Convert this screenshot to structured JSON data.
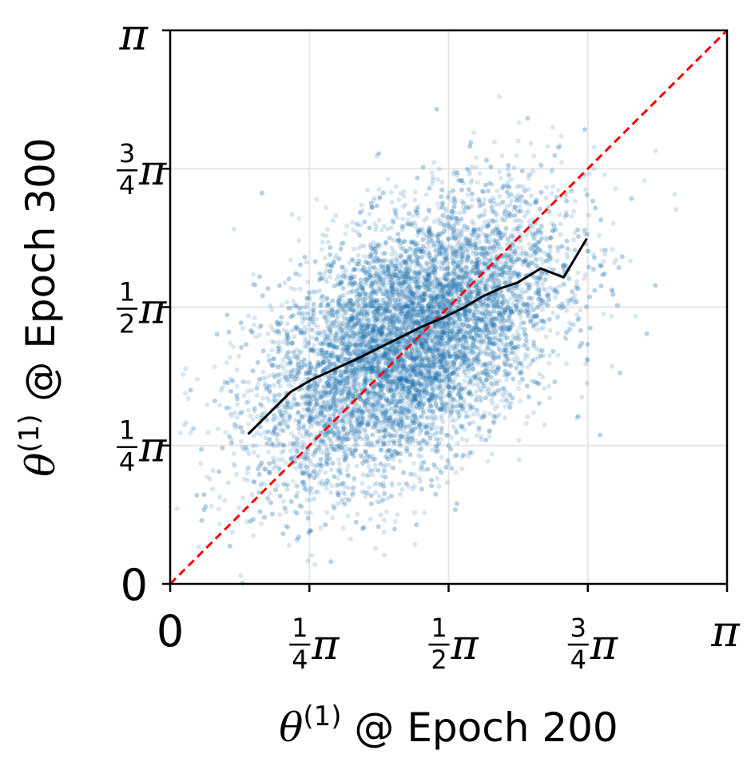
{
  "chart_data": {
    "type": "scatter",
    "xlabel": {
      "var": "θ",
      "sup": "(1)",
      "text": " @ Epoch 200"
    },
    "ylabel": {
      "var": "θ",
      "sup": "(1)",
      "text": " @ Epoch 300"
    },
    "xlim": [
      0,
      3.14159
    ],
    "ylim": [
      0,
      3.14159
    ],
    "grid": true,
    "ticks": [
      {
        "value": 0,
        "label": "0",
        "frac": null
      },
      {
        "value": 0.7854,
        "label": "π",
        "frac": [
          "1",
          "4"
        ]
      },
      {
        "value": 1.5708,
        "label": "π",
        "frac": [
          "1",
          "2"
        ]
      },
      {
        "value": 2.3562,
        "label": "π",
        "frac": [
          "3",
          "4"
        ]
      },
      {
        "value": 3.14159,
        "label": "π",
        "frac": null
      }
    ],
    "scatter": {
      "color": "#1f77b4",
      "opacity": 0.18,
      "approx_points": 9000,
      "center": [
        1.35,
        1.38
      ],
      "spread": [
        0.42,
        0.4
      ],
      "correlation": 0.5
    },
    "trend_line": {
      "color": "#000000",
      "x": [
        0.44,
        0.57,
        0.68,
        0.8,
        0.93,
        1.06,
        1.18,
        1.3,
        1.42,
        1.54,
        1.66,
        1.76,
        1.87,
        1.96,
        2.09,
        2.22,
        2.35
      ],
      "y": [
        0.85,
        0.98,
        1.09,
        1.16,
        1.22,
        1.28,
        1.34,
        1.4,
        1.46,
        1.51,
        1.57,
        1.63,
        1.68,
        1.71,
        1.79,
        1.74,
        1.96
      ]
    },
    "reference_line": {
      "color": "#ff0000",
      "style": "dashed",
      "x": [
        0,
        3.14159
      ],
      "y": [
        0,
        3.14159
      ]
    }
  }
}
